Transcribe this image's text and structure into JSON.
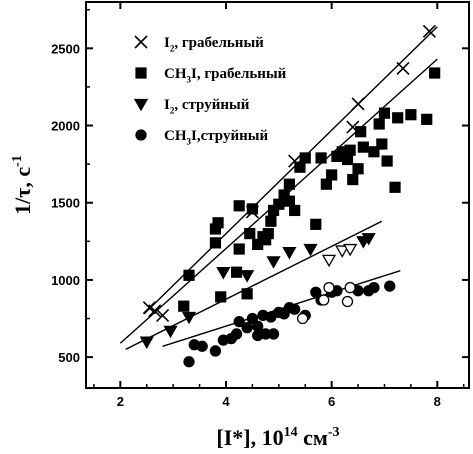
{
  "chart_data": {
    "type": "scatter",
    "title": "",
    "xlabel": "[I*], 10<sup>14</sup> см<sup>-3</sup>",
    "ylabel": "1/τ, с<sup>-1</sup>",
    "xlim": [
      1.35,
      8.6
    ],
    "ylim": [
      300,
      2800
    ],
    "xticks": [
      2,
      4,
      6,
      8
    ],
    "yticks": [
      500,
      1000,
      1500,
      2000,
      2500
    ],
    "grid": false,
    "legend_position": "top-left",
    "series": [
      {
        "name": "I<sub>2</sub>, грабельный",
        "marker": "x",
        "points": [
          [
            2.55,
            820
          ],
          [
            2.65,
            800
          ],
          [
            2.8,
            770
          ],
          [
            4.5,
            1440
          ],
          [
            5.3,
            1770
          ],
          [
            6.4,
            1990
          ],
          [
            6.5,
            2140
          ],
          [
            7.35,
            2370
          ],
          [
            7.85,
            2610
          ]
        ],
        "fit": [
          [
            2.45,
            780
          ],
          [
            8.0,
            2640
          ]
        ]
      },
      {
        "name": "CH<sub>3</sub>I, грабельный",
        "marker": "square",
        "points": [
          [
            3.2,
            830
          ],
          [
            3.3,
            1030
          ],
          [
            3.8,
            1240
          ],
          [
            3.8,
            1330
          ],
          [
            3.85,
            1370
          ],
          [
            3.9,
            890
          ],
          [
            4.2,
            1050
          ],
          [
            4.25,
            1200
          ],
          [
            4.25,
            1480
          ],
          [
            4.4,
            910
          ],
          [
            4.45,
            1300
          ],
          [
            4.5,
            1460
          ],
          [
            4.6,
            1230
          ],
          [
            4.7,
            1280
          ],
          [
            4.75,
            1260
          ],
          [
            4.8,
            1300
          ],
          [
            4.85,
            1380
          ],
          [
            4.9,
            1450
          ],
          [
            5.0,
            1490
          ],
          [
            5.1,
            1550
          ],
          [
            5.2,
            1620
          ],
          [
            5.2,
            1510
          ],
          [
            5.3,
            1450
          ],
          [
            5.4,
            1730
          ],
          [
            5.5,
            1790
          ],
          [
            5.7,
            1360
          ],
          [
            5.8,
            1790
          ],
          [
            5.9,
            1620
          ],
          [
            6.0,
            1680
          ],
          [
            6.1,
            1800
          ],
          [
            6.2,
            1830
          ],
          [
            6.3,
            1780
          ],
          [
            6.35,
            1840
          ],
          [
            6.4,
            1650
          ],
          [
            6.5,
            1720
          ],
          [
            6.55,
            1960
          ],
          [
            6.6,
            1860
          ],
          [
            6.8,
            1830
          ],
          [
            6.9,
            2010
          ],
          [
            6.95,
            1880
          ],
          [
            7.0,
            2080
          ],
          [
            7.05,
            1770
          ],
          [
            7.2,
            1600
          ],
          [
            7.25,
            2050
          ],
          [
            7.5,
            2070
          ],
          [
            7.8,
            2040
          ],
          [
            7.95,
            2340
          ]
        ],
        "fit": [
          [
            2.0,
            590
          ],
          [
            8.0,
            2430
          ]
        ]
      },
      {
        "name": "I<sub>2</sub>, струйный",
        "marker": "triangle-down",
        "points": [
          [
            2.5,
            600
          ],
          [
            2.95,
            670
          ],
          [
            3.3,
            760
          ],
          [
            3.95,
            1050
          ],
          [
            4.4,
            1030
          ],
          [
            4.9,
            1120
          ],
          [
            5.2,
            1180
          ],
          [
            5.6,
            1200
          ],
          [
            6.6,
            1250
          ],
          [
            6.7,
            1270
          ]
        ],
        "open_points": [
          [
            5.95,
            1130
          ],
          [
            6.2,
            1190
          ],
          [
            6.35,
            1200
          ]
        ],
        "fit": [
          [
            2.1,
            550
          ],
          [
            6.95,
            1380
          ]
        ]
      },
      {
        "name": "CH<sub>3</sub>I,струйный",
        "marker": "circle",
        "points": [
          [
            3.3,
            470
          ],
          [
            3.4,
            580
          ],
          [
            3.55,
            570
          ],
          [
            3.8,
            540
          ],
          [
            3.95,
            610
          ],
          [
            4.1,
            620
          ],
          [
            4.2,
            650
          ],
          [
            4.25,
            730
          ],
          [
            4.4,
            690
          ],
          [
            4.5,
            750
          ],
          [
            4.6,
            700
          ],
          [
            4.6,
            640
          ],
          [
            4.7,
            770
          ],
          [
            4.75,
            650
          ],
          [
            4.85,
            760
          ],
          [
            4.9,
            650
          ],
          [
            5.0,
            790
          ],
          [
            5.1,
            780
          ],
          [
            5.2,
            820
          ],
          [
            5.3,
            810
          ],
          [
            5.5,
            770
          ],
          [
            5.7,
            920
          ],
          [
            5.8,
            870
          ],
          [
            6.0,
            920
          ],
          [
            6.1,
            930
          ],
          [
            6.5,
            930
          ],
          [
            6.7,
            930
          ],
          [
            6.8,
            950
          ],
          [
            7.1,
            960
          ]
        ],
        "open_points": [
          [
            5.45,
            750
          ],
          [
            5.85,
            870
          ],
          [
            5.95,
            950
          ],
          [
            6.3,
            860
          ],
          [
            6.35,
            950
          ]
        ],
        "fit": [
          [
            2.8,
            570
          ],
          [
            7.3,
            1060
          ]
        ]
      }
    ]
  }
}
